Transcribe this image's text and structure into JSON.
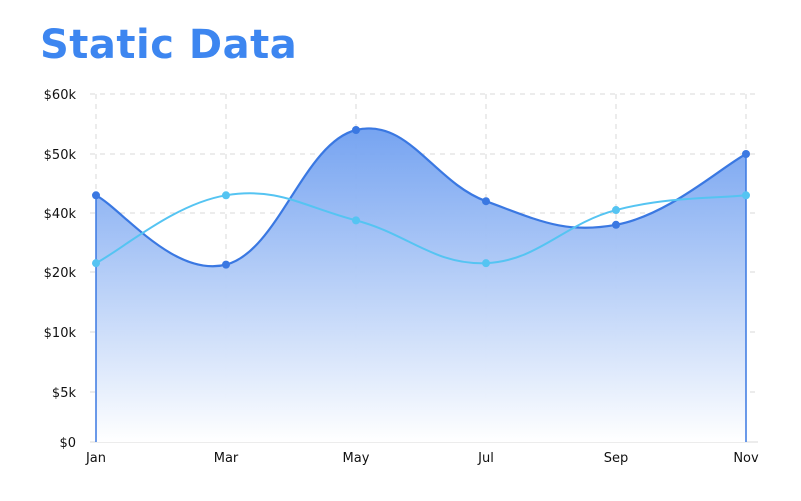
{
  "title": "Static Data",
  "colors": {
    "title": "#3d86f0",
    "series_primary": "#3a78e2",
    "series_secondary": "#55c4f2",
    "fill_top": "#6f9ff0",
    "fill_bottom": "#ffffff",
    "grid": "#d9d9d9"
  },
  "chart_data": {
    "type": "area",
    "title": "Static Data",
    "categories": [
      "Jan",
      "Mar",
      "May",
      "Jul",
      "Sep",
      "Nov"
    ],
    "y_ticks": [
      "$0",
      "$5k",
      "$10k",
      "$20k",
      "$40k",
      "$50k",
      "$60k"
    ],
    "y_scale": "ordinal-spaced tick labels (uneven values)",
    "grid": true,
    "legend": "none",
    "series": [
      {
        "type": "area",
        "values": [
          43000,
          22500,
          54000,
          42000,
          36000,
          50000
        ]
      },
      {
        "type": "line",
        "values": [
          23000,
          43000,
          37500,
          23000,
          40500,
          43000
        ]
      }
    ]
  }
}
